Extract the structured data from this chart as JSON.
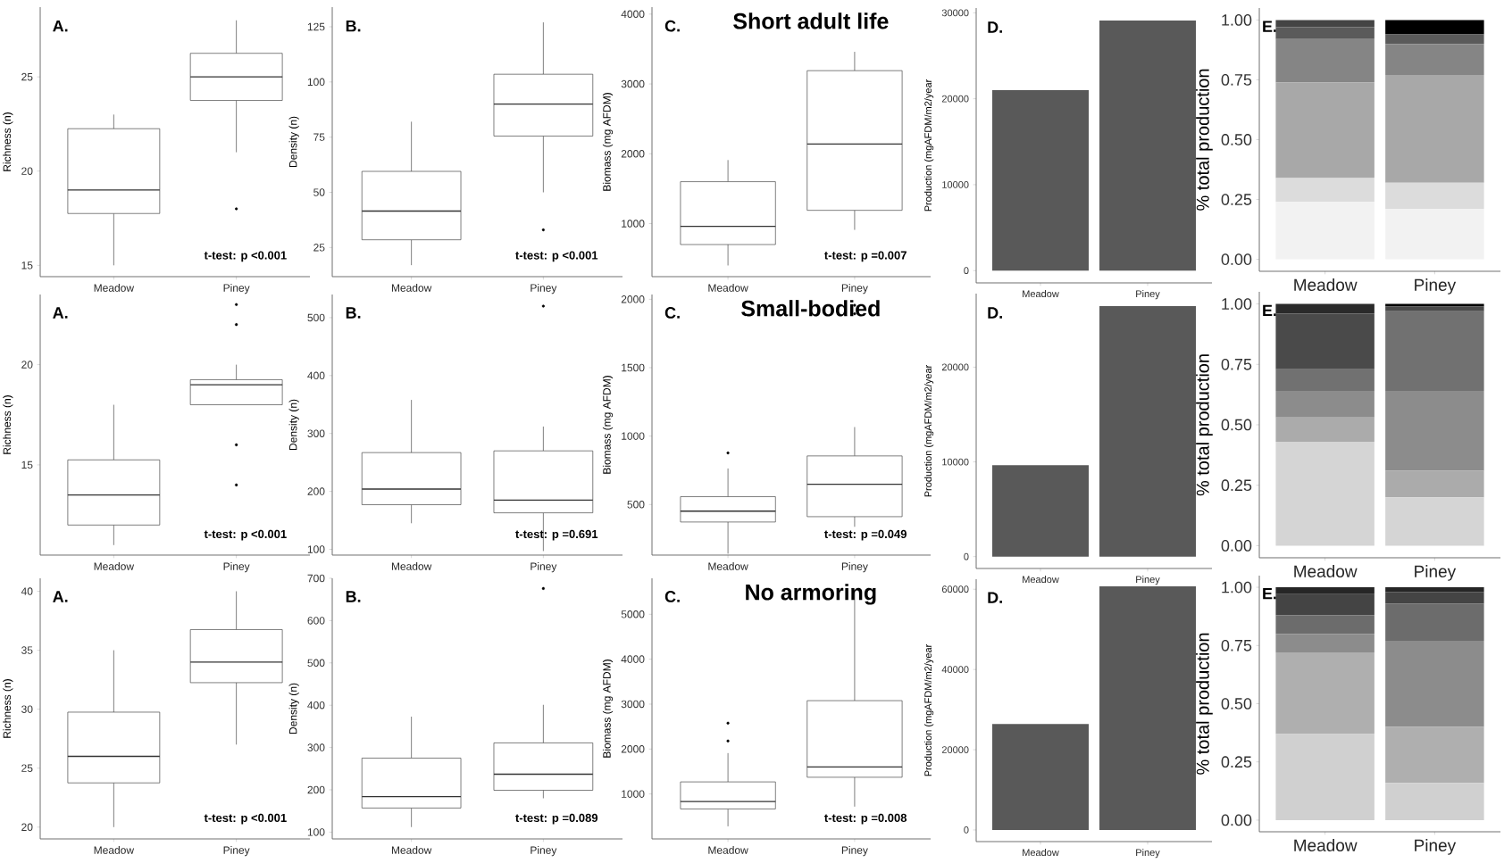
{
  "chart_data": [
    {
      "type": "box",
      "categories": [
        "Meadow",
        "Piney"
      ],
      "ylabel": "Richness (n)",
      "ylim": [
        14.4,
        28.7
      ],
      "yticks": [
        15,
        20,
        25
      ],
      "boxes": [
        {
          "low": 15,
          "q1": 17.75,
          "median": 19,
          "q3": 22.25,
          "high": 23
        },
        {
          "low": 21,
          "q1": 23.75,
          "median": 25,
          "q3": 26.25,
          "high": 28,
          "outliers": [
            18
          ]
        }
      ],
      "annotations": [
        "A.",
        "t-test: p <0.001"
      ]
    },
    {
      "type": "box",
      "categories": [
        "Meadow",
        "Piney"
      ],
      "ylabel": "Density (n)",
      "ylim": [
        11.8,
        133.9
      ],
      "yticks": [
        25,
        50,
        75,
        100,
        125
      ],
      "boxes": [
        {
          "low": 17,
          "q1": 28.5,
          "median": 41.5,
          "q3": 59.5,
          "high": 82
        },
        {
          "low": 50,
          "q1": 75.5,
          "median": 90,
          "q3": 103.5,
          "high": 127,
          "outliers": [
            33
          ]
        }
      ],
      "annotations": [
        "B.",
        "t-test: p <0.001"
      ]
    },
    {
      "type": "box",
      "title": "Short adult life",
      "categories": [
        "Meadow",
        "Piney"
      ],
      "ylabel": "Biomass (mg AFDM)",
      "ylim": [
        240,
        4100
      ],
      "yticks": [
        1000,
        2000,
        3000,
        4000
      ],
      "boxes": [
        {
          "low": 400,
          "q1": 700,
          "median": 960,
          "q3": 1600,
          "high": 1910
        },
        {
          "low": 910,
          "q1": 1190,
          "median": 2140,
          "q3": 3190,
          "high": 3460
        }
      ],
      "annotations": [
        "C.",
        "t-test: p =0.007"
      ]
    },
    {
      "type": "bar",
      "categories": [
        "Meadow",
        "Piney"
      ],
      "values": [
        21000,
        29100
      ],
      "color": "#595959",
      "ylabel": "Production (mgAFDM/m2/year",
      "ylim": [
        -1430,
        30560
      ],
      "yticks": [
        0,
        10000,
        20000,
        30000
      ],
      "annotations": [
        "D."
      ]
    },
    {
      "type": "bar",
      "stacked": true,
      "categories": [
        "Meadow",
        "Piney"
      ],
      "ylabel": "% total production",
      "ylim": [
        -0.05,
        1.05
      ],
      "yticks": [
        {
          "value": 0,
          "label": "0.00"
        },
        {
          "value": 0.25,
          "label": "0.25"
        },
        {
          "value": 0.5,
          "label": "0.50"
        },
        {
          "value": 0.75,
          "label": "0.75"
        },
        {
          "value": 1,
          "label": "1.00"
        }
      ],
      "series": [
        {
          "color": "#f2f2f2",
          "values": [
            0.24,
            0.21
          ]
        },
        {
          "color": "#dcdcdc",
          "values": [
            0.1,
            0.11
          ]
        },
        {
          "color": "#a8a8a8",
          "values": [
            0.4,
            0.45
          ]
        },
        {
          "color": "#858585",
          "values": [
            0.18,
            0.13
          ]
        },
        {
          "color": "#5a5a5a",
          "values": [
            0.05,
            0.04
          ]
        },
        {
          "color": "#444444",
          "values": [
            0.03,
            0
          ]
        },
        {
          "color": "#000000",
          "values": [
            0,
            0.06
          ]
        }
      ],
      "annotations": [
        "E."
      ]
    },
    {
      "type": "box",
      "categories": [
        "Meadow",
        "Piney"
      ],
      "ylabel": "Richness (n)",
      "ylim": [
        10.5,
        23.5
      ],
      "yticks": [
        15,
        20
      ],
      "boxes": [
        {
          "low": 11,
          "q1": 12,
          "median": 13.5,
          "q3": 15.25,
          "high": 18
        },
        {
          "low": 18,
          "q1": 18,
          "median": 19,
          "q3": 19.25,
          "high": 20,
          "outliers": [
            23,
            22,
            16,
            14
          ]
        }
      ],
      "annotations": [
        "A.",
        "t-test: p <0.001"
      ]
    },
    {
      "type": "box",
      "categories": [
        "Meadow",
        "Piney"
      ],
      "ylabel": "Density (n)",
      "ylim": [
        90,
        540
      ],
      "yticks": [
        100,
        200,
        300,
        400,
        500
      ],
      "boxes": [
        {
          "low": 145,
          "q1": 177,
          "median": 204,
          "q3": 267,
          "high": 358
        },
        {
          "low": 97,
          "q1": 163,
          "median": 185,
          "q3": 270,
          "high": 312,
          "outliers": [
            520
          ]
        }
      ],
      "annotations": [
        "B.",
        "t-test: p =0.691"
      ]
    },
    {
      "type": "box",
      "title": "Small-bodied",
      "categories": [
        "Meadow",
        "Piney"
      ],
      "ylabel": "Biomass (mg AFDM)",
      "ylim": [
        130,
        2035
      ],
      "yticks": [
        500,
        1000,
        1500,
        2000
      ],
      "boxes": [
        {
          "low": 140,
          "q1": 372,
          "median": 451,
          "q3": 557,
          "high": 763,
          "outliers": [
            877
          ]
        },
        {
          "low": 337,
          "q1": 411,
          "median": 648,
          "q3": 855,
          "high": 1066,
          "outliers": [
            1956,
            1894
          ]
        }
      ],
      "annotations": [
        "C.",
        "t-test: p =0.049"
      ]
    },
    {
      "type": "bar",
      "categories": [
        "Meadow",
        "Piney"
      ],
      "values": [
        9650,
        26430
      ],
      "color": "#595959",
      "ylabel": "Production (mgAFDM/m2/year",
      "ylim": [
        -1250,
        27760
      ],
      "yticks": [
        0,
        10000,
        20000
      ],
      "annotations": [
        "D."
      ]
    },
    {
      "type": "bar",
      "stacked": true,
      "categories": [
        "Meadow",
        "Piney"
      ],
      "ylabel": "% total production",
      "ylim": [
        -0.05,
        1.05
      ],
      "yticks": [
        {
          "value": 0,
          "label": "0.00"
        },
        {
          "value": 0.25,
          "label": "0.25"
        },
        {
          "value": 0.5,
          "label": "0.50"
        },
        {
          "value": 0.75,
          "label": "0.75"
        },
        {
          "value": 1,
          "label": "1.00"
        }
      ],
      "series": [
        {
          "color": "#d5d5d5",
          "values": [
            0.43,
            0.2
          ]
        },
        {
          "color": "#ababab",
          "values": [
            0.1,
            0.11
          ]
        },
        {
          "color": "#8c8c8c",
          "values": [
            0.11,
            0.33
          ]
        },
        {
          "color": "#717171",
          "values": [
            0.09,
            0.33
          ]
        },
        {
          "color": "#4a4a4a",
          "values": [
            0.23,
            0.02
          ]
        },
        {
          "color": "#2a2a2a",
          "values": [
            0.04,
            0
          ]
        },
        {
          "color": "#000000",
          "values": [
            0,
            0.01
          ]
        }
      ],
      "annotations": [
        "E."
      ]
    },
    {
      "type": "box",
      "categories": [
        "Meadow",
        "Piney"
      ],
      "ylabel": "Richness (n)",
      "ylim": [
        19,
        41.1
      ],
      "yticks": [
        20,
        25,
        30,
        35,
        40
      ],
      "boxes": [
        {
          "low": 20,
          "q1": 23.75,
          "median": 26,
          "q3": 29.75,
          "high": 35
        },
        {
          "low": 27,
          "q1": 32.25,
          "median": 34,
          "q3": 36.75,
          "high": 40
        }
      ],
      "annotations": [
        "A.",
        "t-test: p <0.001"
      ]
    },
    {
      "type": "box",
      "categories": [
        "Meadow",
        "Piney"
      ],
      "ylabel": "Density (n)",
      "ylim": [
        84,
        700
      ],
      "yticks": [
        100,
        200,
        300,
        400,
        500,
        600,
        700
      ],
      "boxes": [
        {
          "low": 112,
          "q1": 157,
          "median": 184,
          "q3": 275,
          "high": 373
        },
        {
          "low": 180,
          "q1": 199,
          "median": 237,
          "q3": 311,
          "high": 401,
          "outliers": [
            676
          ]
        }
      ],
      "annotations": [
        "B.",
        "t-test: p =0.089"
      ]
    },
    {
      "type": "box",
      "title": "No armoring",
      "categories": [
        "Meadow",
        "Piney"
      ],
      "ylabel": "Biomass (mg AFDM)",
      "ylim": [
        0,
        5800
      ],
      "yticks": [
        1000,
        2000,
        3000,
        4000,
        5000
      ],
      "boxes": [
        {
          "low": 280,
          "q1": 667,
          "median": 833,
          "q3": 1269,
          "high": 1910,
          "outliers": [
            2577,
            2180
          ]
        },
        {
          "low": 718,
          "q1": 1372,
          "median": 1603,
          "q3": 3077,
          "high": 5550
        }
      ],
      "annotations": [
        "C.",
        "t-test: p =0.008"
      ]
    },
    {
      "type": "bar",
      "categories": [
        "Meadow",
        "Piney"
      ],
      "values": [
        26400,
        60700
      ],
      "color": "#595959",
      "ylabel": "Production (mgAFDM/m2/year",
      "ylim": [
        -2900,
        62500
      ],
      "yticks": [
        0,
        20000,
        40000,
        60000
      ],
      "annotations": [
        "D."
      ]
    },
    {
      "type": "bar",
      "stacked": true,
      "categories": [
        "Meadow",
        "Piney"
      ],
      "ylabel": "% total production",
      "ylim": [
        -0.05,
        1.05
      ],
      "yticks": [
        {
          "value": 0,
          "label": "0.00"
        },
        {
          "value": 0.25,
          "label": "0.25"
        },
        {
          "value": 0.5,
          "label": "0.50"
        },
        {
          "value": 0.75,
          "label": "0.75"
        },
        {
          "value": 1,
          "label": "1.00"
        }
      ],
      "series": [
        {
          "color": "#d0d0d0",
          "values": [
            0.37,
            0.16
          ]
        },
        {
          "color": "#afafaf",
          "values": [
            0.35,
            0.24
          ]
        },
        {
          "color": "#8c8c8c",
          "values": [
            0.08,
            0.37
          ]
        },
        {
          "color": "#6c6c6c",
          "values": [
            0.08,
            0.16
          ]
        },
        {
          "color": "#444444",
          "values": [
            0.09,
            0.05
          ]
        },
        {
          "color": "#262626",
          "values": [
            0.03,
            0.02
          ]
        }
      ],
      "annotations": [
        "E."
      ]
    }
  ]
}
